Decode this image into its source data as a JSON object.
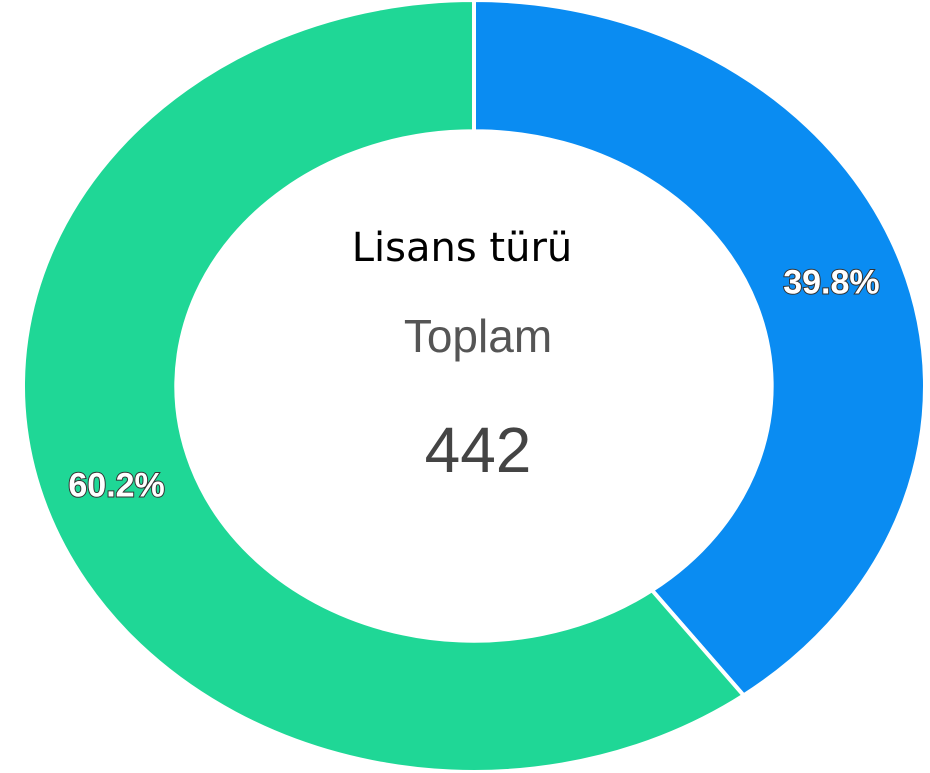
{
  "chart_data": {
    "type": "pie",
    "title": "Lisans türü",
    "center_label": "Toplam",
    "total": 442,
    "values": [
      39.8,
      60.2
    ],
    "value_labels": [
      "39.8%",
      "60.2%"
    ],
    "colors": [
      "#0a8cf2",
      "#1fd796"
    ],
    "donut": true
  }
}
